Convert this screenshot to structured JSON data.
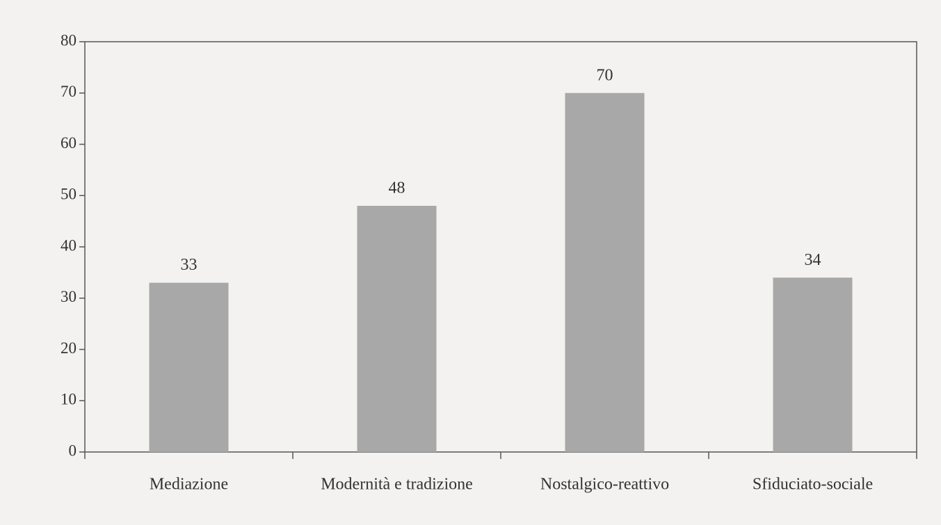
{
  "chart_data": {
    "type": "bar",
    "categories": [
      "Mediazione",
      "Modernità e tradizione",
      "Nostalgico-reattivo",
      "Sfiduciato-sociale"
    ],
    "values": [
      33,
      48,
      70,
      34
    ],
    "color": "#a8a8a8",
    "ylim": [
      0,
      80
    ],
    "yticks": [
      0,
      10,
      20,
      30,
      40,
      50,
      60,
      70,
      80
    ],
    "grid": false
  }
}
